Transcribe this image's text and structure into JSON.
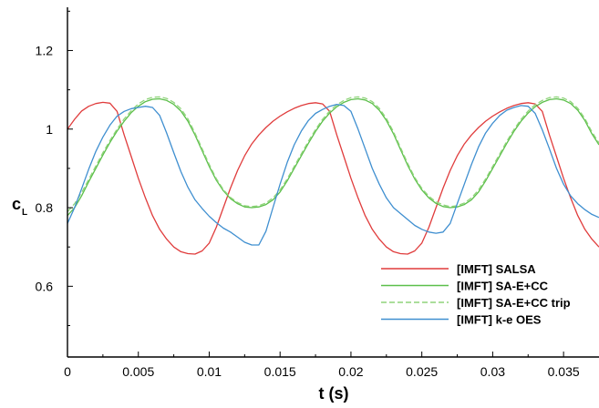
{
  "chart_data": {
    "type": "line",
    "xlabel": "t (s)",
    "ylabel": {
      "main": "c",
      "sub": "L"
    },
    "xlim": [
      0,
      0.0375
    ],
    "ylim": [
      0.42,
      1.31
    ],
    "xticks": [
      {
        "value": 0,
        "label": "0"
      },
      {
        "value": 0.005,
        "label": "0.005"
      },
      {
        "value": 0.01,
        "label": "0.01"
      },
      {
        "value": 0.015,
        "label": "0.015"
      },
      {
        "value": 0.02,
        "label": "0.02"
      },
      {
        "value": 0.025,
        "label": "0.025"
      },
      {
        "value": 0.03,
        "label": "0.03"
      },
      {
        "value": 0.035,
        "label": "0.035"
      }
    ],
    "yticks": [
      {
        "value": 0.6,
        "label": "0.6"
      },
      {
        "value": 0.8,
        "label": "0.8"
      },
      {
        "value": 1.0,
        "label": "1"
      },
      {
        "value": 1.2,
        "label": "1.2"
      }
    ],
    "grid": false,
    "legend_position": "bottom-right",
    "series": [
      {
        "name": "[IMFT] SALSA",
        "color": "#e03c3c",
        "dash": "solid",
        "x": [
          0,
          0.0005,
          0.001,
          0.0015,
          0.002,
          0.0025,
          0.003,
          0.0035,
          0.004,
          0.0045,
          0.005,
          0.0055,
          0.006,
          0.0065,
          0.007,
          0.0075,
          0.008,
          0.0085,
          0.009,
          0.0095,
          0.01,
          0.0105,
          0.011,
          0.0115,
          0.012,
          0.0125,
          0.013,
          0.0135,
          0.014,
          0.0145,
          0.015,
          0.0155,
          0.016,
          0.0165,
          0.017,
          0.0175,
          0.018,
          0.0185,
          0.019,
          0.0195,
          0.02,
          0.0205,
          0.021,
          0.0215,
          0.022,
          0.0225,
          0.023,
          0.0235,
          0.024,
          0.0245,
          0.025,
          0.0255,
          0.026,
          0.0265,
          0.027,
          0.0275,
          0.028,
          0.0285,
          0.029,
          0.0295,
          0.03,
          0.0305,
          0.031,
          0.0315,
          0.032,
          0.0325,
          0.033,
          0.0335,
          0.034,
          0.0345,
          0.035,
          0.0355,
          0.036,
          0.0365,
          0.037,
          0.0375
        ],
        "y": [
          1.0,
          1.025,
          1.046,
          1.058,
          1.065,
          1.068,
          1.066,
          1.045,
          0.985,
          0.93,
          0.875,
          0.825,
          0.78,
          0.745,
          0.72,
          0.7,
          0.688,
          0.683,
          0.682,
          0.69,
          0.71,
          0.75,
          0.8,
          0.85,
          0.895,
          0.932,
          0.962,
          0.985,
          1.004,
          1.02,
          1.033,
          1.044,
          1.053,
          1.06,
          1.065,
          1.067,
          1.064,
          1.045,
          0.985,
          0.93,
          0.875,
          0.825,
          0.78,
          0.745,
          0.72,
          0.7,
          0.688,
          0.683,
          0.682,
          0.69,
          0.71,
          0.75,
          0.8,
          0.85,
          0.895,
          0.932,
          0.962,
          0.985,
          1.004,
          1.02,
          1.033,
          1.044,
          1.053,
          1.06,
          1.065,
          1.067,
          1.064,
          1.045,
          0.985,
          0.93,
          0.875,
          0.825,
          0.78,
          0.745,
          0.72,
          0.7
        ]
      },
      {
        "name": "[IMFT] SA-E+CC",
        "color": "#5cbf4a",
        "dash": "solid",
        "x": [
          0,
          0.0005,
          0.001,
          0.0015,
          0.002,
          0.0025,
          0.003,
          0.0035,
          0.004,
          0.0045,
          0.005,
          0.0055,
          0.006,
          0.0065,
          0.007,
          0.0075,
          0.008,
          0.0085,
          0.009,
          0.0095,
          0.01,
          0.0105,
          0.011,
          0.0115,
          0.012,
          0.0125,
          0.013,
          0.0135,
          0.014,
          0.0145,
          0.015,
          0.0155,
          0.016,
          0.0165,
          0.017,
          0.0175,
          0.018,
          0.0185,
          0.019,
          0.0195,
          0.02,
          0.0205,
          0.021,
          0.0215,
          0.022,
          0.0225,
          0.023,
          0.0235,
          0.024,
          0.0245,
          0.025,
          0.0255,
          0.026,
          0.0265,
          0.027,
          0.0275,
          0.028,
          0.0285,
          0.029,
          0.0295,
          0.03,
          0.0305,
          0.031,
          0.0315,
          0.032,
          0.0325,
          0.033,
          0.0335,
          0.034,
          0.0345,
          0.035,
          0.0355,
          0.036,
          0.0365,
          0.037,
          0.0375
        ],
        "y": [
          0.78,
          0.8,
          0.83,
          0.866,
          0.9,
          0.934,
          0.966,
          0.995,
          1.02,
          1.042,
          1.058,
          1.07,
          1.076,
          1.077,
          1.073,
          1.063,
          1.046,
          1.02,
          0.985,
          0.945,
          0.905,
          0.87,
          0.843,
          0.823,
          0.81,
          0.802,
          0.8,
          0.802,
          0.808,
          0.82,
          0.84,
          0.868,
          0.9,
          0.932,
          0.964,
          0.994,
          1.02,
          1.041,
          1.057,
          1.068,
          1.075,
          1.077,
          1.074,
          1.065,
          1.048,
          1.022,
          0.988,
          0.948,
          0.908,
          0.873,
          0.845,
          0.825,
          0.811,
          0.803,
          0.8,
          0.802,
          0.808,
          0.82,
          0.84,
          0.868,
          0.9,
          0.932,
          0.964,
          0.994,
          1.02,
          1.041,
          1.057,
          1.068,
          1.075,
          1.077,
          1.074,
          1.065,
          1.048,
          1.022,
          0.988,
          0.96
        ]
      },
      {
        "name": "[IMFT] SA-E+CC trip",
        "color": "#8fd47a",
        "dash": "dashed",
        "x": [
          0,
          0.0005,
          0.001,
          0.0015,
          0.002,
          0.0025,
          0.003,
          0.0035,
          0.004,
          0.0045,
          0.005,
          0.0055,
          0.006,
          0.0065,
          0.007,
          0.0075,
          0.008,
          0.0085,
          0.009,
          0.0095,
          0.01,
          0.0105,
          0.011,
          0.0115,
          0.012,
          0.0125,
          0.013,
          0.0135,
          0.014,
          0.0145,
          0.015,
          0.0155,
          0.016,
          0.0165,
          0.017,
          0.0175,
          0.018,
          0.0185,
          0.019,
          0.0195,
          0.02,
          0.0205,
          0.021,
          0.0215,
          0.022,
          0.0225,
          0.023,
          0.0235,
          0.024,
          0.0245,
          0.025,
          0.0255,
          0.026,
          0.0265,
          0.027,
          0.0275,
          0.028,
          0.0285,
          0.029,
          0.0295,
          0.03,
          0.0305,
          0.031,
          0.0315,
          0.032,
          0.0325,
          0.033,
          0.0335,
          0.034,
          0.0345,
          0.035,
          0.0355,
          0.036,
          0.0365,
          0.037,
          0.0375
        ],
        "y": [
          0.79,
          0.81,
          0.838,
          0.872,
          0.906,
          0.94,
          0.971,
          1.0,
          1.026,
          1.047,
          1.064,
          1.075,
          1.081,
          1.082,
          1.078,
          1.068,
          1.052,
          1.026,
          0.99,
          0.95,
          0.91,
          0.874,
          0.846,
          0.826,
          0.813,
          0.805,
          0.803,
          0.805,
          0.812,
          0.825,
          0.845,
          0.873,
          0.905,
          0.937,
          0.969,
          0.999,
          1.025,
          1.046,
          1.062,
          1.073,
          1.08,
          1.082,
          1.079,
          1.07,
          1.053,
          1.027,
          0.993,
          0.953,
          0.913,
          0.877,
          0.849,
          0.829,
          0.815,
          0.807,
          0.803,
          0.805,
          0.812,
          0.825,
          0.845,
          0.873,
          0.905,
          0.937,
          0.969,
          0.999,
          1.025,
          1.046,
          1.062,
          1.073,
          1.08,
          1.082,
          1.079,
          1.07,
          1.053,
          1.027,
          0.993,
          0.965
        ]
      },
      {
        "name": "[IMFT] k-e OES",
        "color": "#3f8fd0",
        "dash": "solid",
        "x": [
          0,
          0.0005,
          0.001,
          0.0015,
          0.002,
          0.0025,
          0.003,
          0.0035,
          0.004,
          0.0045,
          0.005,
          0.0055,
          0.006,
          0.0065,
          0.007,
          0.0075,
          0.008,
          0.0085,
          0.009,
          0.0095,
          0.01,
          0.0105,
          0.011,
          0.0115,
          0.012,
          0.0125,
          0.013,
          0.0135,
          0.014,
          0.0145,
          0.015,
          0.0155,
          0.016,
          0.0165,
          0.017,
          0.0175,
          0.018,
          0.0185,
          0.019,
          0.0195,
          0.02,
          0.0205,
          0.021,
          0.0215,
          0.022,
          0.0225,
          0.023,
          0.0235,
          0.024,
          0.0245,
          0.025,
          0.0255,
          0.026,
          0.0265,
          0.027,
          0.0275,
          0.028,
          0.0285,
          0.029,
          0.0295,
          0.03,
          0.0305,
          0.031,
          0.0315,
          0.032,
          0.0325,
          0.033,
          0.0335,
          0.034,
          0.0345,
          0.035,
          0.0355,
          0.036,
          0.0365,
          0.037,
          0.0375
        ],
        "y": [
          0.76,
          0.8,
          0.848,
          0.898,
          0.943,
          0.98,
          1.01,
          1.033,
          1.045,
          1.052,
          1.055,
          1.058,
          1.055,
          1.035,
          0.99,
          0.94,
          0.892,
          0.852,
          0.82,
          0.798,
          0.778,
          0.762,
          0.748,
          0.738,
          0.725,
          0.712,
          0.705,
          0.705,
          0.74,
          0.8,
          0.86,
          0.915,
          0.96,
          0.995,
          1.022,
          1.04,
          1.05,
          1.058,
          1.063,
          1.06,
          1.045,
          1.0,
          0.95,
          0.9,
          0.86,
          0.825,
          0.8,
          0.785,
          0.77,
          0.755,
          0.745,
          0.738,
          0.735,
          0.738,
          0.76,
          0.81,
          0.86,
          0.91,
          0.955,
          0.99,
          1.015,
          1.035,
          1.048,
          1.055,
          1.06,
          1.058,
          1.04,
          0.998,
          0.95,
          0.9,
          0.86,
          0.83,
          0.81,
          0.795,
          0.783,
          0.775
        ]
      }
    ]
  }
}
